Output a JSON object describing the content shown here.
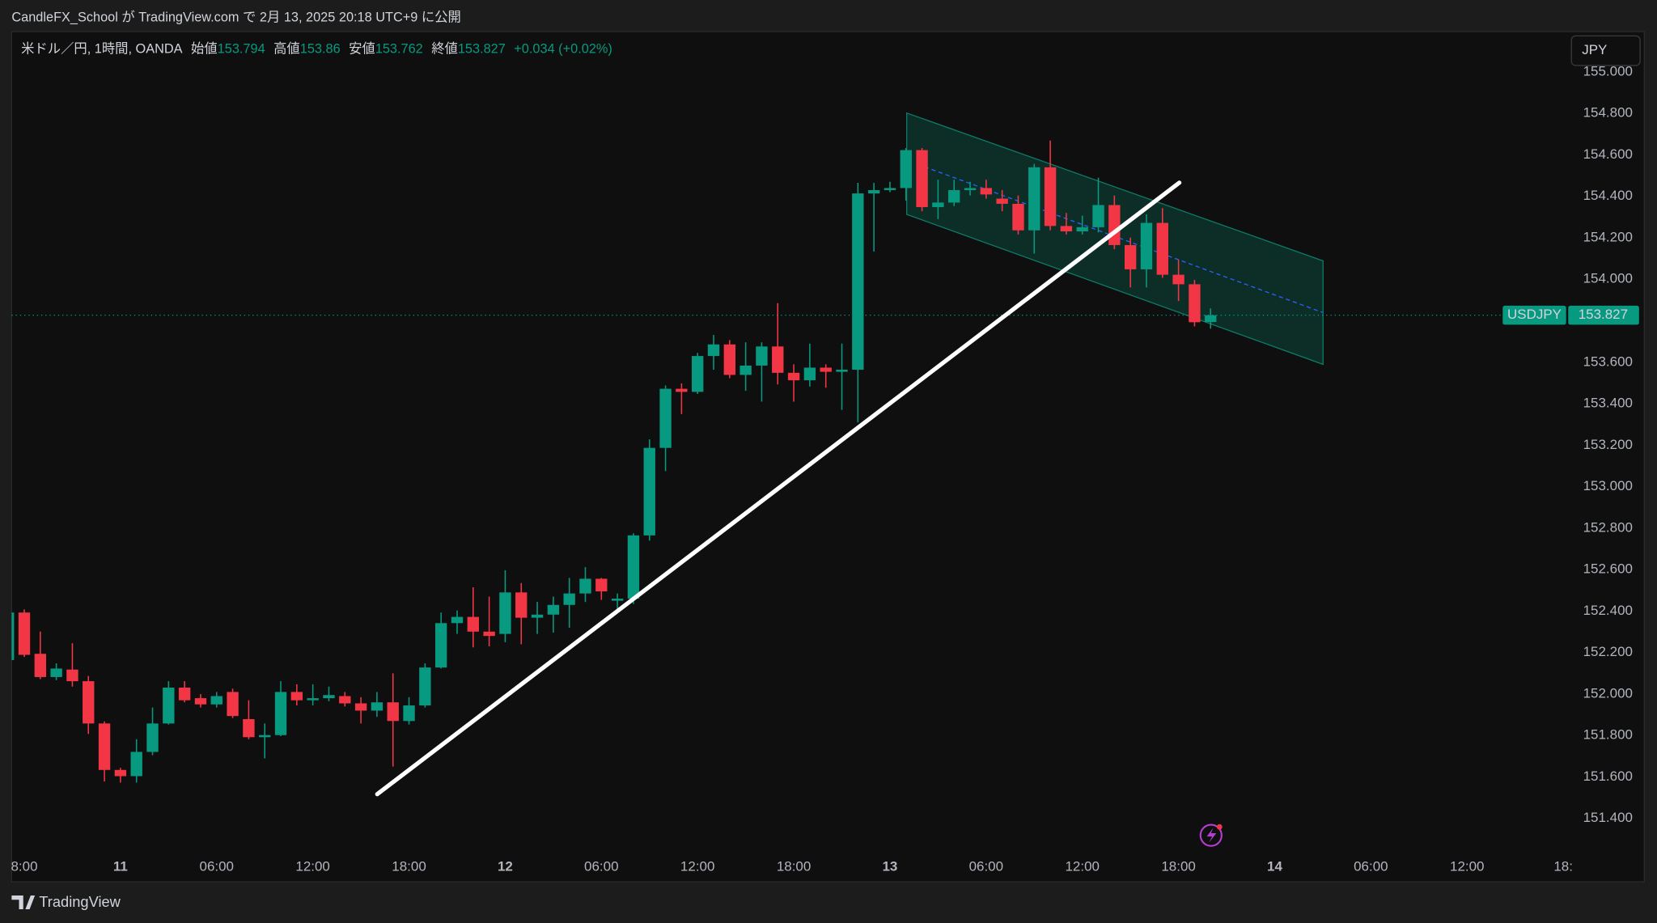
{
  "header": "CandleFX_School が TradingView.com で 2月 13, 2025 20:18 UTC+9 に公開",
  "footer": "TradingView",
  "chart_data": {
    "type": "candlestick",
    "legend": {
      "symbol": "米ドル／円, 1時間, OANDA",
      "items": [
        {
          "label": "始値",
          "value": 153.794
        },
        {
          "label": "高値",
          "value": 153.86
        },
        {
          "label": "安値",
          "value": 153.762
        },
        {
          "label": "終値",
          "value": 153.827
        }
      ],
      "change": "+0.034 (+0.02%)"
    },
    "currency": "JPY",
    "symbol_label": "USDJPY",
    "last_price": 153.827,
    "up_color": "#089981",
    "down_color": "#f23645",
    "grid": false,
    "categories": [
      null,
      "8:00",
      null,
      null,
      null,
      null,
      null,
      "11",
      null,
      null,
      null,
      null,
      null,
      "06:00",
      null,
      null,
      null,
      null,
      null,
      "12:00",
      null,
      null,
      null,
      null,
      null,
      "18:00",
      null,
      null,
      null,
      null,
      null,
      "12",
      null,
      null,
      null,
      null,
      null,
      "06:00",
      null,
      null,
      null,
      null,
      null,
      "12:00",
      null,
      null,
      null,
      null,
      null,
      "18:00",
      null,
      null,
      null,
      null,
      null,
      "13",
      null,
      null,
      null,
      null,
      null,
      "06:00",
      null,
      null,
      null,
      null,
      null,
      "12:00",
      null,
      null,
      null,
      null,
      null,
      "18:00",
      null,
      null,
      null,
      null,
      null,
      "14",
      null,
      null,
      null,
      null,
      null,
      "06:00",
      null,
      null,
      null,
      null,
      null,
      "12:00",
      null,
      null,
      null,
      null,
      null,
      "18:"
    ],
    "open": [
      152.164,
      152.393,
      152.194,
      152.082,
      152.118,
      152.062,
      151.858,
      151.634,
      151.604,
      151.721,
      151.858,
      152.031,
      151.98,
      151.95,
      152.01,
      151.879,
      151.792,
      151.802,
      152.01,
      151.97,
      151.98,
      151.99,
      151.955,
      151.92,
      151.96,
      151.87,
      151.945,
      152.128,
      152.342,
      152.372,
      152.301,
      152.29,
      152.49,
      152.368,
      152.383,
      152.43,
      152.485,
      152.556,
      152.45,
      152.46,
      152.765,
      153.187,
      153.472,
      153.457,
      153.63,
      153.686,
      153.539,
      153.584,
      153.676,
      153.549,
      153.513,
      153.574,
      153.554,
      153.564,
      154.414,
      154.43,
      154.44,
      154.623,
      154.348,
      154.37,
      154.43,
      154.44,
      154.389,
      154.364,
      154.236,
      154.54,
      154.257,
      154.231,
      154.251,
      154.358,
      154.165,
      154.048,
      154.272,
      154.022,
      153.976,
      153.794,
      null,
      null,
      null,
      null,
      null,
      null,
      null,
      null,
      null,
      null,
      null,
      null,
      null,
      null,
      null,
      null,
      null,
      null,
      null,
      null,
      null,
      null
    ],
    "high": [
      152.403,
      152.408,
      152.301,
      152.148,
      152.245,
      152.087,
      151.868,
      151.644,
      151.782,
      151.935,
      152.062,
      152.062,
      152.0,
      152.01,
      152.026,
      151.97,
      151.858,
      152.062,
      152.047,
      152.047,
      152.036,
      152.01,
      151.985,
      152.01,
      152.1,
      151.985,
      152.148,
      152.393,
      152.403,
      152.515,
      152.47,
      152.597,
      152.535,
      152.444,
      152.47,
      152.56,
      152.612,
      152.56,
      152.485,
      152.775,
      153.228,
      153.488,
      153.498,
      153.645,
      153.732,
      153.707,
      153.696,
      153.696,
      153.885,
      153.59,
      153.69,
      153.59,
      153.69,
      154.465,
      154.465,
      154.47,
      154.633,
      154.633,
      154.48,
      154.48,
      154.47,
      154.48,
      154.43,
      154.404,
      154.557,
      154.669,
      154.32,
      154.307,
      154.49,
      154.404,
      154.201,
      154.313,
      154.343,
      154.094,
      153.997,
      153.86,
      null,
      null,
      null,
      null,
      null,
      null,
      null,
      null,
      null,
      null,
      null,
      null,
      null,
      null,
      null,
      null,
      null,
      null,
      null,
      null,
      null,
      null
    ],
    "low": [
      152.154,
      152.179,
      152.072,
      152.067,
      152.036,
      151.807,
      151.578,
      151.573,
      151.573,
      151.705,
      151.853,
      151.96,
      151.935,
      151.935,
      151.884,
      151.782,
      151.69,
      151.797,
      151.945,
      151.945,
      151.965,
      151.94,
      151.858,
      151.89,
      151.65,
      151.853,
      151.935,
      152.123,
      152.29,
      152.225,
      152.23,
      152.25,
      152.24,
      152.29,
      152.296,
      152.32,
      152.444,
      152.454,
      152.403,
      152.434,
      152.74,
      153.075,
      153.35,
      153.447,
      153.564,
      153.523,
      153.462,
      153.41,
      153.493,
      153.41,
      153.483,
      153.477,
      153.37,
      153.31,
      154.134,
      154.42,
      154.379,
      154.328,
      154.29,
      154.353,
      154.404,
      154.389,
      154.328,
      154.216,
      154.124,
      154.236,
      154.216,
      154.216,
      154.226,
      154.145,
      153.961,
      153.961,
      154.007,
      153.895,
      153.773,
      153.762,
      null,
      null,
      null,
      null,
      null,
      null,
      null,
      null,
      null,
      null,
      null,
      null,
      null,
      null,
      null,
      null,
      null,
      null,
      null,
      null,
      null,
      null
    ],
    "close": [
      152.393,
      152.189,
      152.082,
      152.123,
      152.062,
      151.858,
      151.634,
      151.604,
      151.721,
      151.858,
      152.031,
      151.97,
      151.95,
      151.99,
      151.894,
      151.792,
      151.802,
      152.01,
      151.97,
      151.98,
      151.995,
      151.955,
      151.92,
      151.96,
      151.87,
      151.945,
      152.128,
      152.342,
      152.372,
      152.301,
      152.28,
      152.49,
      152.368,
      152.383,
      152.43,
      152.485,
      152.556,
      152.495,
      152.46,
      152.765,
      153.187,
      153.472,
      153.457,
      153.63,
      153.686,
      153.539,
      153.584,
      153.676,
      153.549,
      153.513,
      153.574,
      153.554,
      153.564,
      154.414,
      154.43,
      154.44,
      154.623,
      154.348,
      154.37,
      154.43,
      154.44,
      154.409,
      154.364,
      154.236,
      154.54,
      154.257,
      154.231,
      154.251,
      154.358,
      154.165,
      154.048,
      154.272,
      154.022,
      153.976,
      153.793,
      153.827,
      null,
      null,
      null,
      null,
      null,
      null,
      null,
      null,
      null,
      null,
      null,
      null,
      null,
      null,
      null,
      null,
      null,
      null,
      null,
      null,
      null,
      null
    ],
    "ylim": [
      151.232,
      155.194
    ],
    "yticks": [
      {
        "value": 151.4,
        "label": "151.400"
      },
      {
        "value": 151.6,
        "label": "151.600"
      },
      {
        "value": 151.8,
        "label": "151.800"
      },
      {
        "value": 152.0,
        "label": "152.000"
      },
      {
        "value": 152.2,
        "label": "152.200"
      },
      {
        "value": 152.4,
        "label": "152.400"
      },
      {
        "value": 152.6,
        "label": "152.600"
      },
      {
        "value": 152.8,
        "label": "152.800"
      },
      {
        "value": 153.0,
        "label": "153.000"
      },
      {
        "value": 153.2,
        "label": "153.200"
      },
      {
        "value": 153.4,
        "label": "153.400"
      },
      {
        "value": 153.6,
        "label": "153.600"
      },
      {
        "value": 153.8,
        "label": "153.800"
      },
      {
        "value": 154.0,
        "label": "154.000"
      },
      {
        "value": 154.2,
        "label": "154.200"
      },
      {
        "value": 154.4,
        "label": "154.400"
      },
      {
        "value": 154.6,
        "label": "154.600"
      },
      {
        "value": 154.8,
        "label": "154.800"
      },
      {
        "value": 155.0,
        "label": "155.000"
      }
    ]
  }
}
